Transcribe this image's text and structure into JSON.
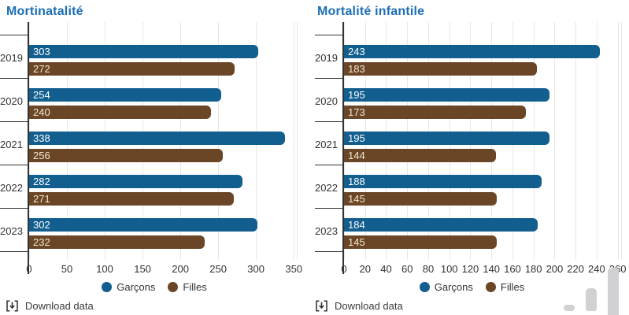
{
  "colors": {
    "title": "#1c6eb4",
    "garcons": "#115e8f",
    "filles": "#6b4626",
    "grid": "#e7e7e7",
    "axis_line": "#333333",
    "text": "#333333",
    "decor_bar": "#cfd1d2"
  },
  "download": {
    "label": "Download data",
    "icon": "download-bracket-arrow-icon"
  },
  "decor": {
    "icon": "bar-chart-glyph"
  },
  "chart_data": [
    {
      "type": "bar",
      "orientation": "horizontal",
      "title": "Mortinatalité",
      "xlabel": "",
      "ylabel": "",
      "categories": [
        "2019",
        "2020",
        "2021",
        "2022",
        "2023"
      ],
      "series": [
        {
          "name": "Garçons",
          "color": "#115e8f",
          "label_color": "#ffffff",
          "values": [
            303,
            254,
            338,
            282,
            302
          ]
        },
        {
          "name": "Filles",
          "color": "#6b4626",
          "label_color": "#f2e7d3",
          "values": [
            272,
            240,
            256,
            271,
            232
          ]
        }
      ],
      "ticks": [
        0,
        50,
        100,
        150,
        200,
        250,
        300,
        350
      ],
      "axis_max": 355,
      "grid": true,
      "legend_position": "bottom",
      "data_labels": "inside-start"
    },
    {
      "type": "bar",
      "orientation": "horizontal",
      "title": "Mortalité infantile",
      "xlabel": "",
      "ylabel": "",
      "categories": [
        "2019",
        "2020",
        "2021",
        "2022",
        "2023"
      ],
      "series": [
        {
          "name": "Garçons",
          "color": "#115e8f",
          "label_color": "#ffffff",
          "values": [
            243,
            195,
            195,
            188,
            184
          ]
        },
        {
          "name": "Filles",
          "color": "#6b4626",
          "label_color": "#f2e7d3",
          "values": [
            183,
            173,
            144,
            145,
            145
          ]
        }
      ],
      "ticks": [
        0,
        20,
        40,
        60,
        80,
        100,
        120,
        140,
        160,
        180,
        200,
        220,
        240,
        260
      ],
      "axis_max": 264,
      "grid": true,
      "legend_position": "bottom",
      "data_labels": "inside-start"
    }
  ]
}
